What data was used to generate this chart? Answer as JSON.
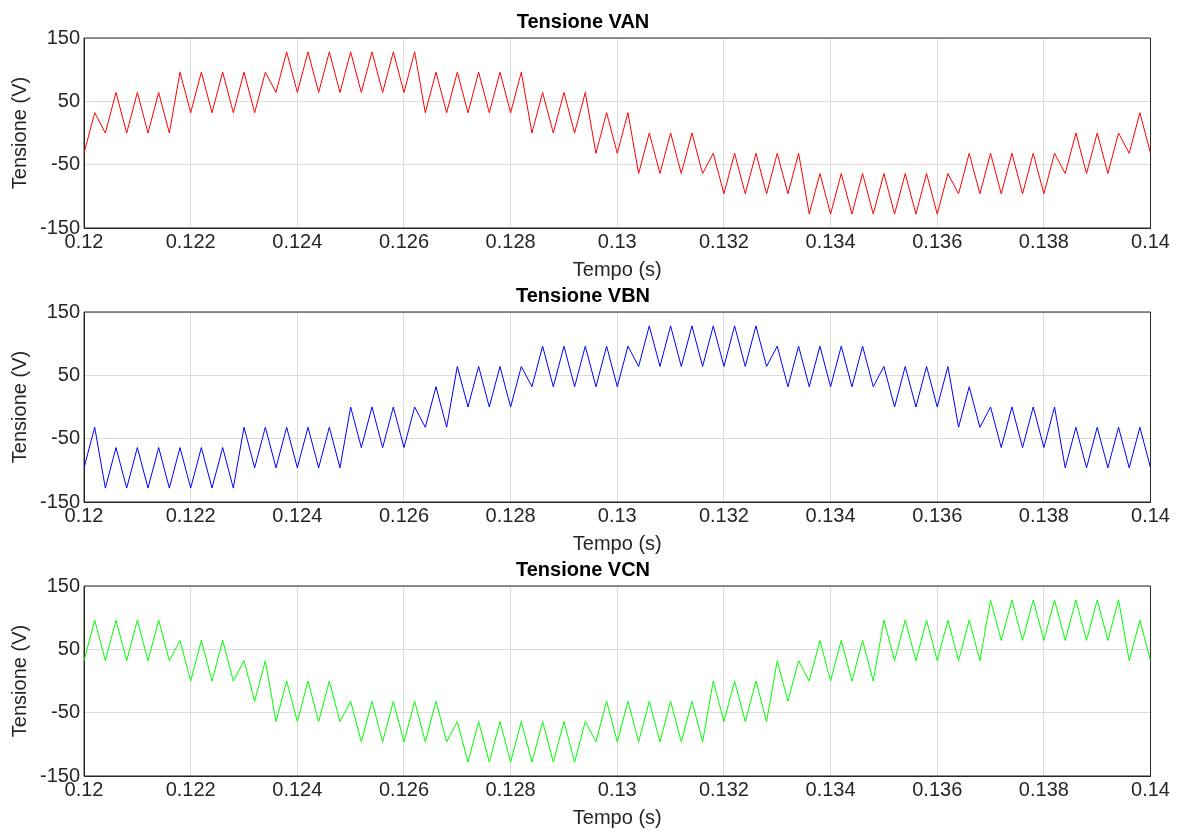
{
  "chart_data": [
    {
      "type": "line",
      "title": "Tensione VAN",
      "xlabel": "Tempo (s)",
      "ylabel": "Tensione (V)",
      "xlim": [
        0.12,
        0.14
      ],
      "xticks": [
        0.12,
        0.122,
        0.124,
        0.126,
        0.128,
        0.13,
        0.132,
        0.134,
        0.136,
        0.138,
        0.14
      ],
      "ylim": [
        -150,
        150
      ],
      "yticks": [
        -150,
        -50,
        50,
        150
      ],
      "grid": true,
      "x": [
        0.12,
        0.1202,
        0.1204,
        0.1206,
        0.1208,
        0.121,
        0.1212,
        0.1214,
        0.1216,
        0.1218,
        0.122,
        0.1222,
        0.1224,
        0.1226,
        0.1228,
        0.123,
        0.1232,
        0.1234,
        0.1236,
        0.1238,
        0.124,
        0.1242,
        0.1244,
        0.1246,
        0.1248,
        0.125,
        0.1252,
        0.1254,
        0.1256,
        0.1258,
        0.126,
        0.1262,
        0.1264,
        0.1266,
        0.1268,
        0.127,
        0.1272,
        0.1274,
        0.1276,
        0.1278,
        0.128,
        0.1282,
        0.1284,
        0.1286,
        0.1288,
        0.129,
        0.1292,
        0.1294,
        0.1296,
        0.1298,
        0.13,
        0.1302,
        0.1304,
        0.1306,
        0.1308,
        0.131,
        0.1312,
        0.1314,
        0.1316,
        0.1318,
        0.132,
        0.1322,
        0.1324,
        0.1326,
        0.1328,
        0.133,
        0.1332,
        0.1334,
        0.1336,
        0.1338,
        0.134,
        0.1342,
        0.1344,
        0.1346,
        0.1348,
        0.135,
        0.1352,
        0.1354,
        0.1356,
        0.1358,
        0.136,
        0.1362,
        0.1364,
        0.1366,
        0.1368,
        0.137,
        0.1372,
        0.1374,
        0.1376,
        0.1378,
        0.138,
        0.1382,
        0.1384,
        0.1386,
        0.1388,
        0.139,
        0.1392,
        0.1394,
        0.1396,
        0.1398,
        0.14
      ],
      "series": [
        {
          "color": "#ff0000",
          "values": [
            -32,
            32,
            0,
            64,
            0,
            64,
            0,
            64,
            0,
            96,
            32,
            96,
            32,
            96,
            32,
            96,
            32,
            96,
            64,
            128,
            64,
            128,
            64,
            128,
            64,
            128,
            64,
            128,
            64,
            128,
            64,
            128,
            32,
            96,
            32,
            96,
            32,
            96,
            32,
            96,
            32,
            96,
            0,
            64,
            0,
            64,
            0,
            64,
            -32,
            32,
            -32,
            32,
            -64,
            0,
            -64,
            0,
            -64,
            0,
            -64,
            -32,
            -96,
            -32,
            -96,
            -32,
            -96,
            -32,
            -96,
            -32,
            -128,
            -64,
            -128,
            -64,
            -128,
            -64,
            -128,
            -64,
            -128,
            -64,
            -128,
            -64,
            -128,
            -64,
            -96,
            -32,
            -96,
            -32,
            -96,
            -32,
            -96,
            -32,
            -96,
            -32,
            -64,
            0,
            -64,
            0,
            -64,
            0,
            -32,
            32,
            -32
          ]
        }
      ]
    },
    {
      "type": "line",
      "title": "Tensione VBN",
      "xlabel": "Tempo (s)",
      "ylabel": "Tensione (V)",
      "xlim": [
        0.12,
        0.14
      ],
      "xticks": [
        0.12,
        0.122,
        0.124,
        0.126,
        0.128,
        0.13,
        0.132,
        0.134,
        0.136,
        0.138,
        0.14
      ],
      "ylim": [
        -150,
        150
      ],
      "yticks": [
        -150,
        -50,
        50,
        150
      ],
      "grid": true,
      "x": [
        0.12,
        0.1202,
        0.1204,
        0.1206,
        0.1208,
        0.121,
        0.1212,
        0.1214,
        0.1216,
        0.1218,
        0.122,
        0.1222,
        0.1224,
        0.1226,
        0.1228,
        0.123,
        0.1232,
        0.1234,
        0.1236,
        0.1238,
        0.124,
        0.1242,
        0.1244,
        0.1246,
        0.1248,
        0.125,
        0.1252,
        0.1254,
        0.1256,
        0.1258,
        0.126,
        0.1262,
        0.1264,
        0.1266,
        0.1268,
        0.127,
        0.1272,
        0.1274,
        0.1276,
        0.1278,
        0.128,
        0.1282,
        0.1284,
        0.1286,
        0.1288,
        0.129,
        0.1292,
        0.1294,
        0.1296,
        0.1298,
        0.13,
        0.1302,
        0.1304,
        0.1306,
        0.1308,
        0.131,
        0.1312,
        0.1314,
        0.1316,
        0.1318,
        0.132,
        0.1322,
        0.1324,
        0.1326,
        0.1328,
        0.133,
        0.1332,
        0.1334,
        0.1336,
        0.1338,
        0.134,
        0.1342,
        0.1344,
        0.1346,
        0.1348,
        0.135,
        0.1352,
        0.1354,
        0.1356,
        0.1358,
        0.136,
        0.1362,
        0.1364,
        0.1366,
        0.1368,
        0.137,
        0.1372,
        0.1374,
        0.1376,
        0.1378,
        0.138,
        0.1382,
        0.1384,
        0.1386,
        0.1388,
        0.139,
        0.1392,
        0.1394,
        0.1396,
        0.1398,
        0.14
      ],
      "series": [
        {
          "color": "#0000ff",
          "values": [
            -96,
            -32,
            -128,
            -64,
            -128,
            -64,
            -128,
            -64,
            -128,
            -64,
            -128,
            -64,
            -128,
            -64,
            -128,
            -32,
            -96,
            -32,
            -96,
            -32,
            -96,
            -32,
            -96,
            -32,
            -96,
            0,
            -64,
            0,
            -64,
            0,
            -64,
            0,
            -32,
            32,
            -32,
            64,
            0,
            64,
            0,
            64,
            0,
            64,
            32,
            96,
            32,
            96,
            32,
            96,
            32,
            96,
            32,
            96,
            64,
            128,
            64,
            128,
            64,
            128,
            64,
            128,
            64,
            128,
            64,
            128,
            64,
            96,
            32,
            96,
            32,
            96,
            32,
            96,
            32,
            96,
            32,
            64,
            0,
            64,
            0,
            64,
            0,
            64,
            -32,
            32,
            -32,
            0,
            -64,
            0,
            -64,
            0,
            -64,
            0,
            -96,
            -32,
            -96,
            -32,
            -96,
            -32,
            -96,
            -32,
            -96
          ]
        }
      ]
    },
    {
      "type": "line",
      "title": "Tensione VCN",
      "xlabel": "Tempo (s)",
      "ylabel": "Tensione (V)",
      "xlim": [
        0.12,
        0.14
      ],
      "xticks": [
        0.12,
        0.122,
        0.124,
        0.126,
        0.128,
        0.13,
        0.132,
        0.134,
        0.136,
        0.138,
        0.14
      ],
      "ylim": [
        -150,
        150
      ],
      "yticks": [
        -150,
        -50,
        50,
        150
      ],
      "grid": true,
      "x": [
        0.12,
        0.1202,
        0.1204,
        0.1206,
        0.1208,
        0.121,
        0.1212,
        0.1214,
        0.1216,
        0.1218,
        0.122,
        0.1222,
        0.1224,
        0.1226,
        0.1228,
        0.123,
        0.1232,
        0.1234,
        0.1236,
        0.1238,
        0.124,
        0.1242,
        0.1244,
        0.1246,
        0.1248,
        0.125,
        0.1252,
        0.1254,
        0.1256,
        0.1258,
        0.126,
        0.1262,
        0.1264,
        0.1266,
        0.1268,
        0.127,
        0.1272,
        0.1274,
        0.1276,
        0.1278,
        0.128,
        0.1282,
        0.1284,
        0.1286,
        0.1288,
        0.129,
        0.1292,
        0.1294,
        0.1296,
        0.1298,
        0.13,
        0.1302,
        0.1304,
        0.1306,
        0.1308,
        0.131,
        0.1312,
        0.1314,
        0.1316,
        0.1318,
        0.132,
        0.1322,
        0.1324,
        0.1326,
        0.1328,
        0.133,
        0.1332,
        0.1334,
        0.1336,
        0.1338,
        0.134,
        0.1342,
        0.1344,
        0.1346,
        0.1348,
        0.135,
        0.1352,
        0.1354,
        0.1356,
        0.1358,
        0.136,
        0.1362,
        0.1364,
        0.1366,
        0.1368,
        0.137,
        0.1372,
        0.1374,
        0.1376,
        0.1378,
        0.138,
        0.1382,
        0.1384,
        0.1386,
        0.1388,
        0.139,
        0.1392,
        0.1394,
        0.1396,
        0.1398,
        0.14
      ],
      "series": [
        {
          "color": "#00ff00",
          "values": [
            32,
            96,
            32,
            96,
            32,
            96,
            32,
            96,
            32,
            64,
            0,
            64,
            0,
            64,
            0,
            32,
            -32,
            32,
            -64,
            0,
            -64,
            0,
            -64,
            0,
            -64,
            -32,
            -96,
            -32,
            -96,
            -32,
            -96,
            -32,
            -96,
            -32,
            -96,
            -64,
            -128,
            -64,
            -128,
            -64,
            -128,
            -64,
            -128,
            -64,
            -128,
            -64,
            -128,
            -64,
            -96,
            -32,
            -96,
            -32,
            -96,
            -32,
            -96,
            -32,
            -96,
            -32,
            -96,
            0,
            -64,
            0,
            -64,
            0,
            -64,
            32,
            -32,
            32,
            0,
            64,
            0,
            64,
            0,
            64,
            0,
            96,
            32,
            96,
            32,
            96,
            32,
            96,
            32,
            96,
            32,
            128,
            64,
            128,
            64,
            128,
            64,
            128,
            64,
            128,
            64,
            128,
            64,
            128,
            32,
            96,
            32
          ]
        }
      ]
    }
  ]
}
